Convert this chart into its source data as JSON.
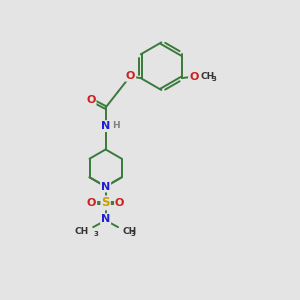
{
  "background_color": "#e4e4e4",
  "figsize": [
    3.0,
    3.0
  ],
  "dpi": 100,
  "bond_color": "#3a7a3a",
  "bond_width": 1.4,
  "font_size": 8.0,
  "colors": {
    "N": "#2020cc",
    "O": "#cc2020",
    "S": "#c8a000",
    "H": "#808080",
    "C": "#333333"
  },
  "xlim": [
    0,
    10
  ],
  "ylim": [
    0,
    13
  ]
}
